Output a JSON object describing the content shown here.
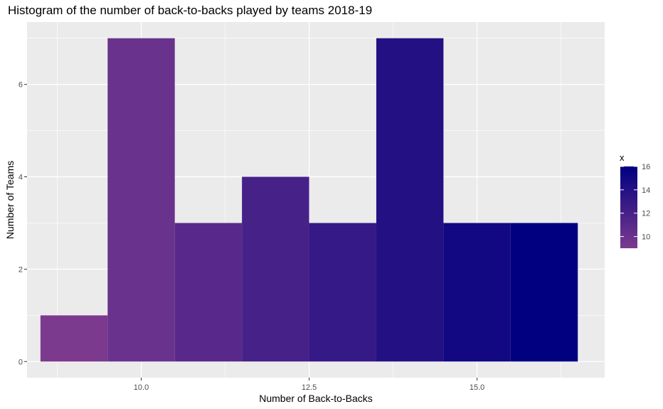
{
  "chart_data": {
    "type": "bar",
    "title": "Histogram of the number of back-to-backs played by teams 2018-19",
    "xlabel": "Number of Back-to-Backs",
    "ylabel": "Number of Teams",
    "bins": [
      {
        "center": 9,
        "count": 1
      },
      {
        "center": 10,
        "count": 7
      },
      {
        "center": 11,
        "count": 3
      },
      {
        "center": 12,
        "count": 4
      },
      {
        "center": 13,
        "count": 3
      },
      {
        "center": 14,
        "count": 7
      },
      {
        "center": 15,
        "count": 3
      },
      {
        "center": 16,
        "count": 3
      }
    ],
    "bin_width": 1,
    "xlim": [
      8.3,
      16.9
    ],
    "ylim": [
      -0.35,
      7.35
    ],
    "x_ticks": [
      10.0,
      12.5,
      15.0
    ],
    "x_tick_labels": [
      "10.0",
      "12.5",
      "15.0"
    ],
    "y_ticks": [
      0,
      2,
      4,
      6
    ],
    "y_tick_labels": [
      "0",
      "2",
      "4",
      "6"
    ],
    "grid": true,
    "legend": {
      "title": "x",
      "position": "right",
      "type": "colorbar",
      "min": 9,
      "max": 16,
      "breaks": [
        10,
        12,
        14,
        16
      ],
      "break_labels": [
        "10",
        "12",
        "14",
        "16"
      ],
      "color_low": "#7b3a8e",
      "color_high": "#000080"
    },
    "panel_background": "#ebebeb",
    "grid_color": "#ffffff"
  }
}
